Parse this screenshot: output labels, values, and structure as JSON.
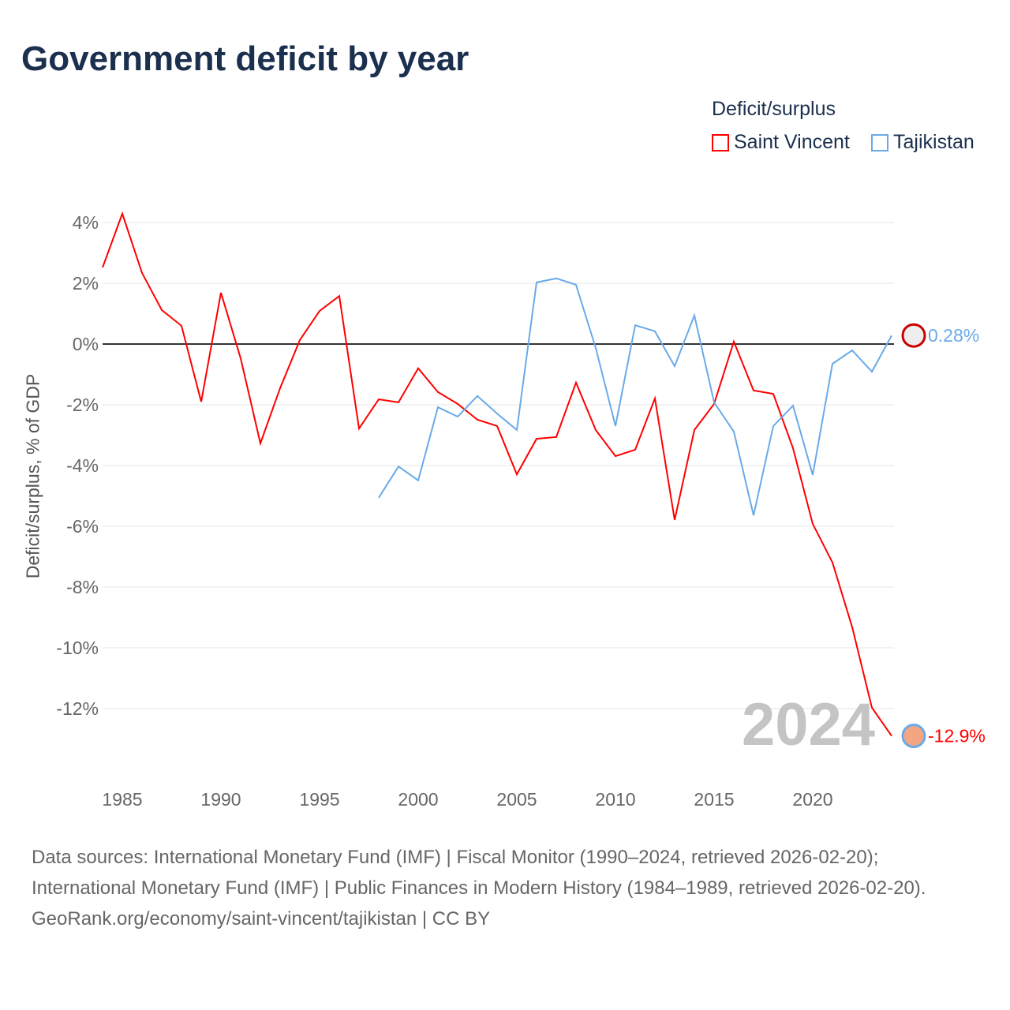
{
  "title": "Government deficit by year",
  "legend": {
    "title": "Deficit/surplus",
    "items": [
      "Saint Vincent",
      "Tajikistan"
    ]
  },
  "year_label": "2024",
  "footer": {
    "sources": "Data sources: International Monetary Fund (IMF) | Fiscal Monitor (1990–2024, retrieved 2026-02-20); International Monetary Fund (IMF) | Public Finances in Modern History (1984–1989, retrieved 2026-02-20).",
    "credit": "GeoRank.org/economy/saint-vincent/tajikistan | CC BY"
  },
  "chart_data": {
    "type": "line",
    "title": "Government deficit by year",
    "ylabel": "Deficit/surplus, % of GDP",
    "xlabel": "",
    "xlim": [
      1984,
      2024
    ],
    "ylim": [
      -13.5,
      4.5
    ],
    "xticks": [
      1985,
      1990,
      1995,
      2000,
      2005,
      2010,
      2015,
      2020
    ],
    "yticks": [
      4,
      2,
      0,
      -2,
      -4,
      -6,
      -8,
      -10,
      -12
    ],
    "ytick_labels": [
      "4%",
      "2%",
      "0%",
      "-2%",
      "-4%",
      "-6%",
      "-8%",
      "-10%",
      "-12%"
    ],
    "legend_position": "top-right",
    "series": [
      {
        "name": "Saint Vincent",
        "color": "#ff0000",
        "end_label": "-12.9%",
        "x": [
          1984,
          1985,
          1986,
          1987,
          1988,
          1989,
          1990,
          1991,
          1992,
          1993,
          1994,
          1995,
          1996,
          1997,
          1998,
          1999,
          2000,
          2001,
          2002,
          2003,
          2004,
          2005,
          2006,
          2007,
          2008,
          2009,
          2010,
          2011,
          2012,
          2013,
          2014,
          2015,
          2016,
          2017,
          2018,
          2019,
          2020,
          2021,
          2022,
          2023,
          2024
        ],
        "y": [
          2.52,
          4.29,
          2.34,
          1.12,
          0.6,
          -1.9,
          1.69,
          -0.47,
          -3.27,
          -1.45,
          0.13,
          1.09,
          1.58,
          -2.78,
          -1.82,
          -1.92,
          -0.8,
          -1.58,
          -1.97,
          -2.49,
          -2.7,
          -4.29,
          -3.12,
          -3.06,
          -1.27,
          -2.83,
          -3.69,
          -3.48,
          -1.79,
          -5.79,
          -2.83,
          -1.97,
          0.08,
          -1.53,
          -1.64,
          -3.43,
          -5.92,
          -7.19,
          -9.32,
          -11.97,
          -12.9
        ]
      },
      {
        "name": "Tajikistan",
        "color": "#6aaae8",
        "end_label": "0.28%",
        "x": [
          1998,
          1999,
          2000,
          2001,
          2002,
          2003,
          2004,
          2005,
          2006,
          2007,
          2008,
          2009,
          2010,
          2011,
          2012,
          2013,
          2014,
          2015,
          2016,
          2017,
          2018,
          2019,
          2020,
          2021,
          2022,
          2023,
          2024
        ],
        "y": [
          -5.06,
          -4.03,
          -4.49,
          -2.08,
          -2.39,
          -1.71,
          -2.29,
          -2.83,
          2.03,
          2.16,
          1.95,
          -0.13,
          -2.7,
          0.62,
          0.42,
          -0.73,
          0.94,
          -1.92,
          -2.88,
          -5.64,
          -2.7,
          -2.03,
          -4.31,
          -0.65,
          -0.21,
          -0.91,
          0.28
        ]
      }
    ]
  }
}
